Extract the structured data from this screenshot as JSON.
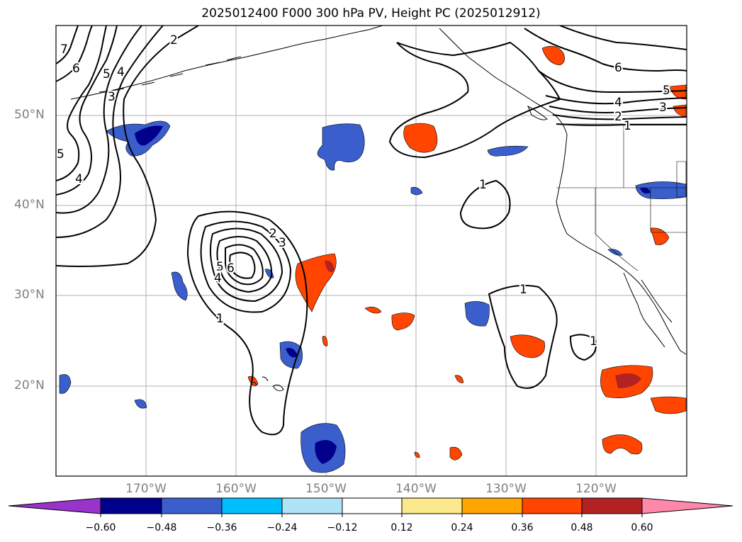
{
  "title": "2025012400 F000 300 hPa PV, Height PC (2025012912)",
  "map": {
    "lat_labels": [
      "50°N",
      "40°N",
      "30°N",
      "20°N"
    ],
    "lon_labels": [
      "170°W",
      "160°W",
      "150°W",
      "140°W",
      "130°W",
      "120°W"
    ],
    "extent": {
      "lon": [
        -180,
        -110
      ],
      "lat": [
        10,
        60
      ]
    },
    "grid": true
  },
  "contours": {
    "labels": [
      "7",
      "6",
      "5",
      "4",
      "3",
      "2",
      "5",
      "4",
      "6",
      "5",
      "4",
      "3",
      "2",
      "1",
      "1",
      "1",
      "1",
      "2",
      "3",
      "5",
      "6",
      "4",
      "1"
    ]
  },
  "colorbar": {
    "ticks": [
      "−0.60",
      "−0.48",
      "−0.36",
      "−0.24",
      "−0.12",
      "0.12",
      "0.24",
      "0.36",
      "0.48",
      "0.60"
    ],
    "colors": [
      "#9933cc",
      "#00008b",
      "#3a5fcd",
      "#00bfff",
      "#aee3f8",
      "#ffffff",
      "#fce98e",
      "#ffa500",
      "#ff4500",
      "#b22222",
      "#ff88aa"
    ],
    "extend": "both"
  },
  "colors": {
    "grid": "#b0b0b0",
    "coast": "#000000",
    "contour": "#000000",
    "tick_label": "#808080"
  }
}
